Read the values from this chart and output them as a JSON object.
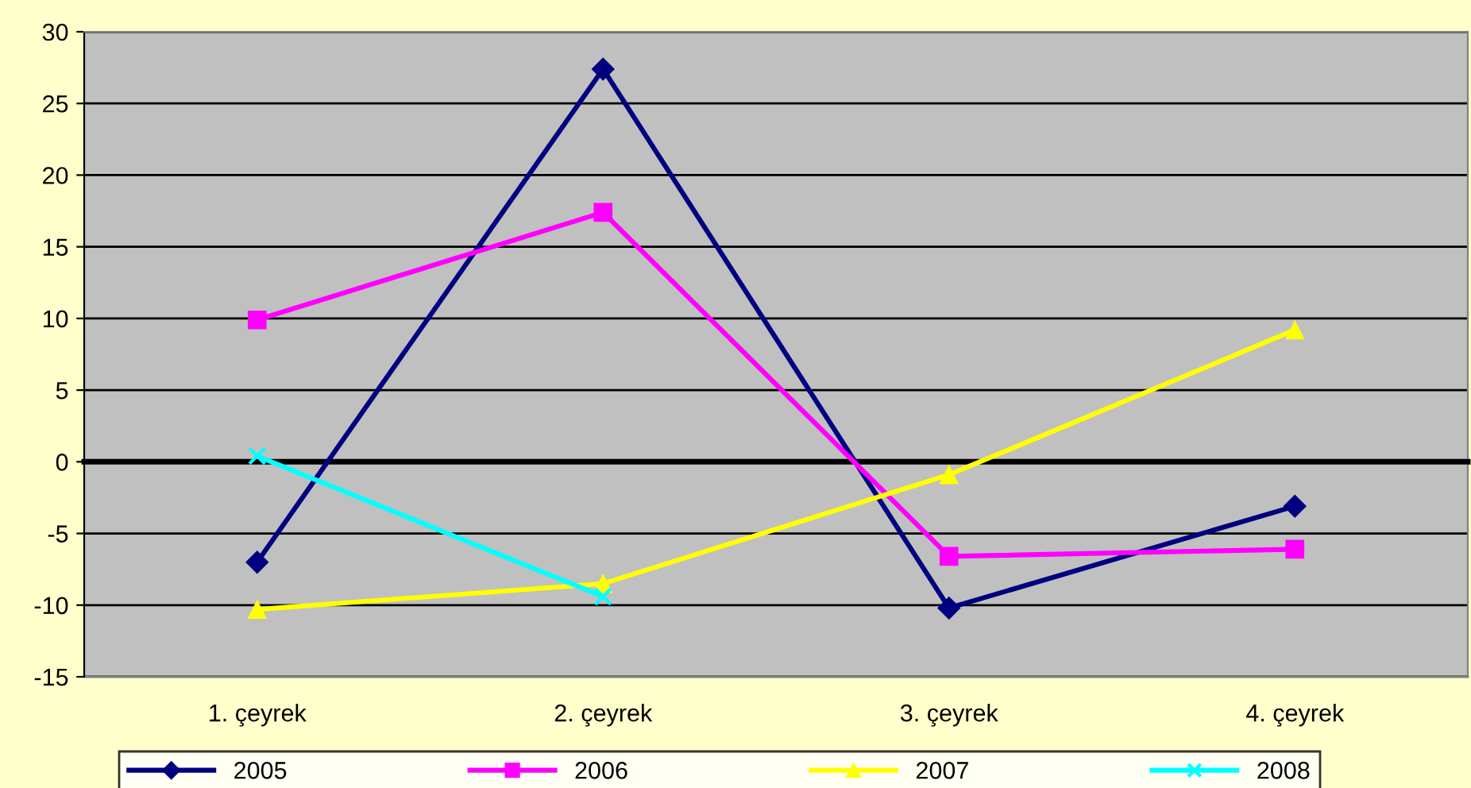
{
  "chart_data": {
    "type": "line",
    "categories": [
      "1. çeyrek",
      "2. çeyrek",
      "3. çeyrek",
      "4. çeyrek"
    ],
    "series": [
      {
        "name": "2005",
        "color": "#000080",
        "marker": "diamond",
        "values": [
          -7,
          27.4,
          -10.2,
          -3.1
        ]
      },
      {
        "name": "2006",
        "color": "#ff00ff",
        "marker": "square",
        "values": [
          9.9,
          17.4,
          -6.6,
          -6.1
        ]
      },
      {
        "name": "2007",
        "color": "#ffff00",
        "marker": "triangle",
        "values": [
          -10.3,
          -8.5,
          -0.9,
          9.2
        ]
      },
      {
        "name": "2008",
        "color": "#00ffff",
        "marker": "cross",
        "values": [
          0.4,
          -9.4,
          null,
          null
        ]
      }
    ],
    "ylim": [
      -15,
      30
    ],
    "yticks": [
      -15,
      -10,
      -5,
      0,
      5,
      10,
      15,
      20,
      25,
      30
    ],
    "grid": "y",
    "legend": "bottom",
    "line_style": "solid"
  }
}
